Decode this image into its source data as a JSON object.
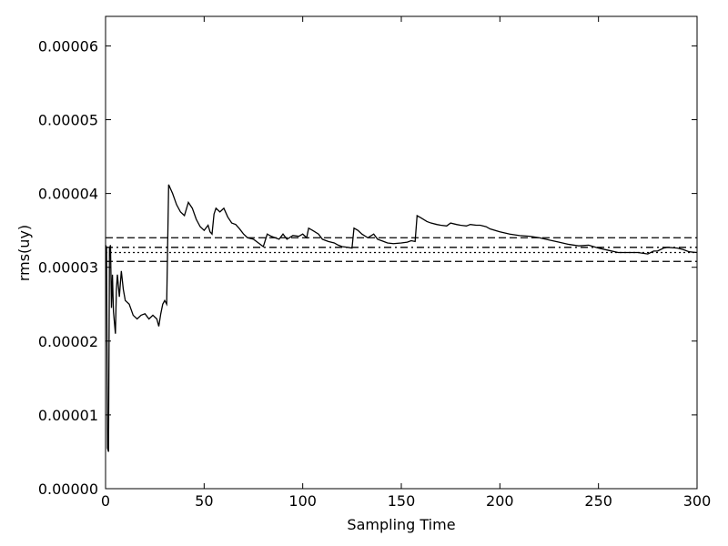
{
  "chart_data": {
    "type": "line",
    "title": "",
    "xlabel": "Sampling Time",
    "ylabel": "rms(uy)",
    "xlim": [
      0,
      300
    ],
    "ylim": [
      0,
      6.4e-05
    ],
    "xticks": [
      0,
      50,
      100,
      150,
      200,
      250,
      300
    ],
    "xtick_labels": [
      "0",
      "50",
      "100",
      "150",
      "200",
      "250",
      "300"
    ],
    "yticks": [
      0,
      1e-05,
      2e-05,
      3e-05,
      4e-05,
      5e-05,
      6e-05
    ],
    "ytick_labels": [
      "0.00000",
      "0.00001",
      "0.00002",
      "0.00003",
      "0.00004",
      "0.00005",
      "0.00006"
    ],
    "grid": false,
    "series": [
      {
        "style": "solid",
        "color": "#000000",
        "x": [
          0,
          0.5,
          1,
          1.5,
          2,
          2.5,
          3,
          3.5,
          4,
          5,
          5.5,
          6,
          7,
          8,
          9,
          10,
          12,
          14,
          16,
          18,
          20,
          22,
          24,
          26,
          27,
          28,
          29,
          30,
          31,
          32,
          34,
          36,
          38,
          40,
          42,
          44,
          46,
          48,
          50,
          52,
          53,
          54,
          55,
          56,
          58,
          60,
          62,
          64,
          66,
          68,
          70,
          72,
          75,
          78,
          80,
          82,
          84,
          86,
          88,
          90,
          92,
          95,
          98,
          100,
          102,
          103,
          105,
          108,
          110,
          113,
          116,
          118,
          120,
          123,
          125,
          126,
          128,
          130,
          133,
          136,
          138,
          140,
          143,
          146,
          150,
          153,
          155,
          157,
          158,
          160,
          163,
          165,
          168,
          170,
          173,
          175,
          178,
          180,
          183,
          185,
          188,
          190,
          193,
          195,
          200,
          205,
          210,
          215,
          220,
          225,
          230,
          235,
          240,
          245,
          250,
          255,
          260,
          265,
          270,
          275,
          278,
          280,
          283,
          285,
          290,
          293,
          296,
          300
        ],
        "y": [
          3.3e-05,
          3.27e-05,
          5.5e-06,
          5e-06,
          3.25e-05,
          3.3e-05,
          2.45e-05,
          2.9e-05,
          2.4e-05,
          2.1e-05,
          2.7e-05,
          2.9e-05,
          2.6e-05,
          2.95e-05,
          2.7e-05,
          2.55e-05,
          2.5e-05,
          2.35e-05,
          2.3e-05,
          2.35e-05,
          2.37e-05,
          2.3e-05,
          2.35e-05,
          2.3e-05,
          2.2e-05,
          2.37e-05,
          2.5e-05,
          2.55e-05,
          2.5e-05,
          4.12e-05,
          4e-05,
          3.85e-05,
          3.75e-05,
          3.7e-05,
          3.88e-05,
          3.8e-05,
          3.65e-05,
          3.55e-05,
          3.5e-05,
          3.57e-05,
          3.48e-05,
          3.45e-05,
          3.72e-05,
          3.8e-05,
          3.75e-05,
          3.8e-05,
          3.68e-05,
          3.6e-05,
          3.58e-05,
          3.52e-05,
          3.45e-05,
          3.4e-05,
          3.38e-05,
          3.32e-05,
          3.28e-05,
          3.45e-05,
          3.42e-05,
          3.4e-05,
          3.38e-05,
          3.45e-05,
          3.38e-05,
          3.43e-05,
          3.42e-05,
          3.45e-05,
          3.4e-05,
          3.53e-05,
          3.5e-05,
          3.45e-05,
          3.38e-05,
          3.35e-05,
          3.33e-05,
          3.3e-05,
          3.28e-05,
          3.27e-05,
          3.26e-05,
          3.53e-05,
          3.5e-05,
          3.45e-05,
          3.4e-05,
          3.45e-05,
          3.38e-05,
          3.36e-05,
          3.33e-05,
          3.32e-05,
          3.33e-05,
          3.34e-05,
          3.36e-05,
          3.35e-05,
          3.7e-05,
          3.67e-05,
          3.62e-05,
          3.6e-05,
          3.58e-05,
          3.57e-05,
          3.56e-05,
          3.6e-05,
          3.58e-05,
          3.57e-05,
          3.56e-05,
          3.58e-05,
          3.57e-05,
          3.57e-05,
          3.55e-05,
          3.52e-05,
          3.48e-05,
          3.45e-05,
          3.43e-05,
          3.42e-05,
          3.4e-05,
          3.37e-05,
          3.34e-05,
          3.31e-05,
          3.29e-05,
          3.3e-05,
          3.26e-05,
          3.23e-05,
          3.2e-05,
          3.2e-05,
          3.2e-05,
          3.18e-05,
          3.22e-05,
          3.22e-05,
          3.26e-05,
          3.27e-05,
          3.26e-05,
          3.24e-05,
          3.21e-05,
          3.2e-05
        ]
      },
      {
        "style": "dashed",
        "color": "#000000",
        "x": [
          0,
          300
        ],
        "y": [
          3.4e-05,
          3.4e-05
        ]
      },
      {
        "style": "dashed",
        "color": "#000000",
        "x": [
          0,
          300
        ],
        "y": [
          3.08e-05,
          3.08e-05
        ]
      },
      {
        "style": "dashdot",
        "color": "#000000",
        "x": [
          0,
          300
        ],
        "y": [
          3.27e-05,
          3.27e-05
        ]
      },
      {
        "style": "dotted",
        "color": "#000000",
        "x": [
          0,
          300
        ],
        "y": [
          3.2e-05,
          3.2e-05
        ]
      }
    ]
  }
}
